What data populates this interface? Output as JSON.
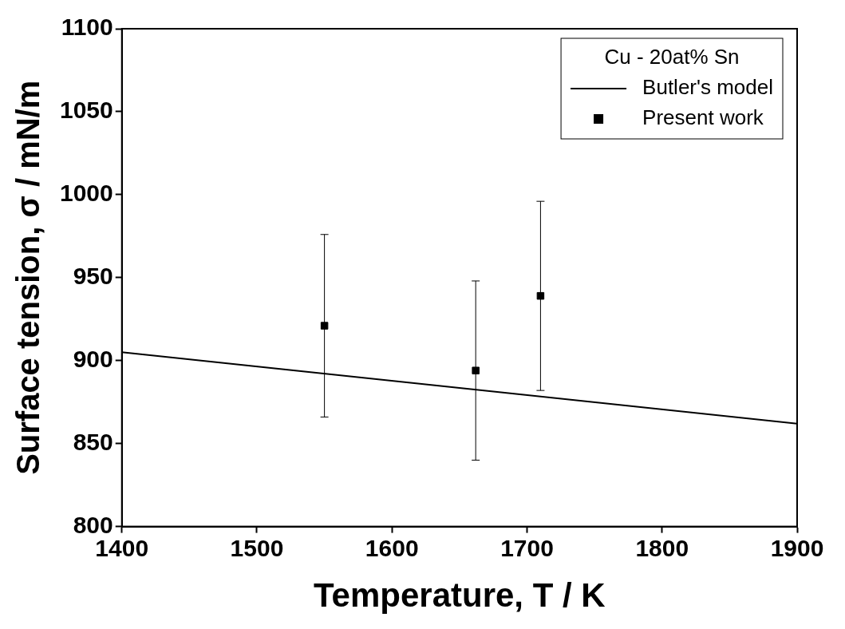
{
  "chart_data": {
    "type": "scatter",
    "title": "Cu - 20at% Sn",
    "x_label": "Temperature, T / K",
    "y_label": "Surface tension, σ / mN/m",
    "xlim": [
      1400,
      1900
    ],
    "xticks": [
      1400,
      1500,
      1600,
      1700,
      1800,
      1900
    ],
    "ylim": [
      800,
      1100
    ],
    "yticks": [
      800,
      850,
      900,
      950,
      1000,
      1050,
      1100
    ],
    "grid": false,
    "legend": "upper right",
    "series": [
      {
        "name": "Butler's model",
        "type": "line",
        "line_style": "solid",
        "color": "#000000",
        "x": [
          1400,
          1900
        ],
        "values": [
          905,
          862
        ]
      },
      {
        "name": "Present work",
        "type": "scatter",
        "marker": "square",
        "color": "#000000",
        "x": [
          1550,
          1662,
          1710
        ],
        "values": [
          921,
          894,
          939
        ],
        "errors": [
          55,
          54,
          57
        ]
      }
    ]
  }
}
